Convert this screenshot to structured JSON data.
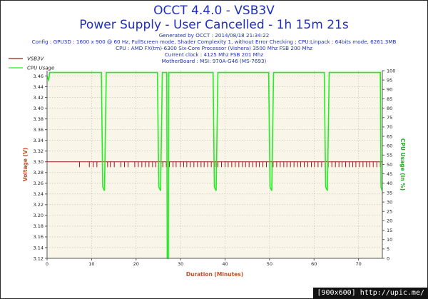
{
  "header": {
    "title": "OCCT 4.4.0 - VSB3V",
    "subtitle": "Power Supply - User Cancelled - 1h 15m 21s",
    "generated": "Generated by OCCT : 2014/08/18 21:34:22",
    "config": "Config : GPU3D : 1600 x 900 @ 60 Hz, FullScreen mode, Shader Complexity 1, without Error Checking ; CPU:Linpack : 64bits mode, 6261.3MB",
    "cpu": "CPU : AMD FX(tm)-6300 Six-Core Processor (Vishera) 3500 Mhz FSB 200 Mhz",
    "clock": "Current clock : 4125 Mhz FSB 201 Mhz",
    "motherboard": "MotherBoard : MSI: 970A-G46 (MS-7693)"
  },
  "footer": {
    "watermark": "[900x600] http://upic.me/"
  },
  "colors": {
    "voltage": "#9b1a1a",
    "cpu": "#22ee22",
    "title": "#1f2fbd",
    "axis_title": "#c0502a",
    "bg": "#f9f5e9"
  },
  "chart_data": {
    "type": "line",
    "xlabel": "Duration (Minutes)",
    "ylabel": "Voltage (V)",
    "y2label": "CPU Usage (in %)",
    "xlim": [
      0,
      75.35
    ],
    "ylim": [
      3.12,
      3.47
    ],
    "y2lim": [
      0,
      100
    ],
    "xticks": [
      0,
      10,
      20,
      30,
      40,
      50,
      60,
      70
    ],
    "yticks": [
      3.12,
      3.14,
      3.16,
      3.18,
      3.2,
      3.22,
      3.24,
      3.26,
      3.28,
      3.3,
      3.32,
      3.34,
      3.36,
      3.38,
      3.4,
      3.42,
      3.44,
      3.46
    ],
    "y2ticks": [
      0,
      5,
      10,
      15,
      20,
      25,
      30,
      35,
      40,
      45,
      50,
      55,
      60,
      65,
      70,
      75,
      80,
      85,
      90,
      95,
      100
    ],
    "grid": true,
    "legend_position": "top-left",
    "series": [
      {
        "name": "VSB3V",
        "axis": "left",
        "style": "spiky",
        "baseline": 3.3,
        "spike_value": 3.29,
        "spike_x": [
          7.3,
          9.5,
          10.4,
          11.2,
          13.6,
          14.2,
          15.1,
          16.6,
          17.4,
          18.2,
          19.7,
          20.5,
          21.3,
          22.1,
          22.9,
          23.7,
          24.4,
          26.0,
          26.8,
          27.5,
          28.3,
          29.0,
          29.9,
          30.7,
          31.4,
          32.2,
          33.0,
          33.8,
          34.6,
          35.3,
          36.1,
          36.9,
          37.7,
          38.4,
          39.2,
          40.0,
          40.7,
          41.5,
          42.3,
          43.1,
          43.9,
          44.6,
          45.4,
          46.2,
          47.0,
          47.7,
          48.5,
          49.3,
          50.1,
          50.8,
          51.6,
          52.4,
          53.2,
          53.9,
          54.7,
          55.5,
          56.3,
          57.0,
          57.8,
          58.6,
          59.4,
          60.1,
          60.9,
          61.7,
          62.5,
          63.2,
          64.0,
          64.8,
          65.6,
          66.3,
          67.1,
          67.9,
          68.7,
          69.4,
          70.2,
          71.0,
          71.8,
          72.5,
          73.3,
          74.1,
          74.9
        ]
      },
      {
        "name": "CPU Usage",
        "axis": "right",
        "style": "line",
        "points": [
          [
            0,
            97
          ],
          [
            0.35,
            95
          ],
          [
            0.6,
            99
          ],
          [
            12.2,
            99
          ],
          [
            12.5,
            38
          ],
          [
            12.9,
            36
          ],
          [
            13.3,
            99
          ],
          [
            24.8,
            99
          ],
          [
            25.1,
            38
          ],
          [
            25.5,
            36
          ],
          [
            25.9,
            99
          ],
          [
            26.9,
            99
          ],
          [
            27.0,
            0
          ],
          [
            27.25,
            0
          ],
          [
            27.35,
            99
          ],
          [
            37.3,
            99
          ],
          [
            37.6,
            38
          ],
          [
            38.0,
            36
          ],
          [
            38.4,
            99
          ],
          [
            49.8,
            99
          ],
          [
            50.1,
            38
          ],
          [
            50.5,
            36
          ],
          [
            50.9,
            99
          ],
          [
            62.3,
            99
          ],
          [
            62.6,
            38
          ],
          [
            63.0,
            36
          ],
          [
            63.4,
            99
          ],
          [
            74.9,
            99
          ],
          [
            75.05,
            38
          ],
          [
            75.3,
            36
          ]
        ]
      }
    ]
  }
}
